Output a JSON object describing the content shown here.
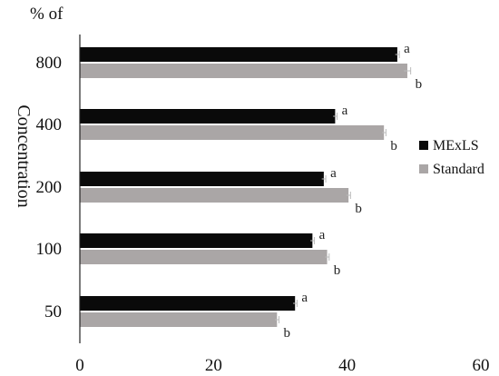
{
  "chart_data": {
    "type": "bar",
    "orientation": "horizontal",
    "title": "% of",
    "xlabel": "",
    "ylabel": "Concentration",
    "categories": [
      "800",
      "400",
      "200",
      "100",
      "50"
    ],
    "series": [
      {
        "name": "MExLS",
        "color": "#0a0a0a",
        "values": [
          47.5,
          38.2,
          36.5,
          34.8,
          32.2
        ],
        "errors": [
          0.3,
          0.3,
          0.3,
          0.3,
          0.3
        ],
        "labels": [
          "a",
          "a",
          "a",
          "a",
          "a"
        ]
      },
      {
        "name": "Standard",
        "color": "#aaa6a6",
        "values": [
          49.0,
          45.5,
          40.2,
          37.0,
          29.5
        ],
        "errors": [
          0.5,
          0.3,
          0.3,
          0.3,
          0.3
        ],
        "labels": [
          "b",
          "b",
          "b",
          "b",
          "b"
        ]
      }
    ],
    "xlim": [
      0,
      60
    ],
    "xticks": [
      "0",
      "20",
      "40",
      "60"
    ],
    "grid": false,
    "legend": "right"
  }
}
